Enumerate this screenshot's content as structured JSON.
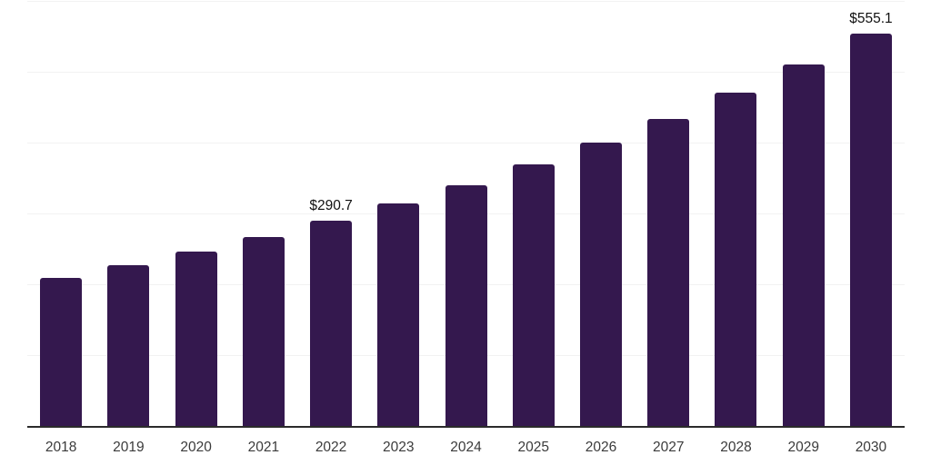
{
  "chart_style": {
    "background_color": "#ffffff",
    "bar_color": "#34184e",
    "gridline_color": "#f2f2f2",
    "axis_line_color": "#2b2b2b",
    "tick_label_color": "#3b3b3b",
    "data_label_color": "#111111"
  },
  "chart_data": {
    "type": "bar",
    "title": "",
    "xlabel": "",
    "ylabel": "",
    "categories": [
      "2018",
      "2019",
      "2020",
      "2021",
      "2022",
      "2023",
      "2024",
      "2025",
      "2026",
      "2027",
      "2028",
      "2029",
      "2030"
    ],
    "values": [
      210.5,
      228.2,
      247.4,
      268.2,
      290.7,
      315.1,
      341.6,
      370.3,
      401.4,
      435.2,
      471.8,
      511.4,
      555.1
    ],
    "data_labels": [
      null,
      null,
      null,
      null,
      "$290.7",
      null,
      null,
      null,
      null,
      null,
      null,
      null,
      "$555.1"
    ],
    "ylim": [
      0,
      600
    ],
    "gridline_step": 100,
    "grid": true,
    "legend_position": "none",
    "x_tick_labels_visible": true,
    "y_tick_labels_visible": false
  }
}
